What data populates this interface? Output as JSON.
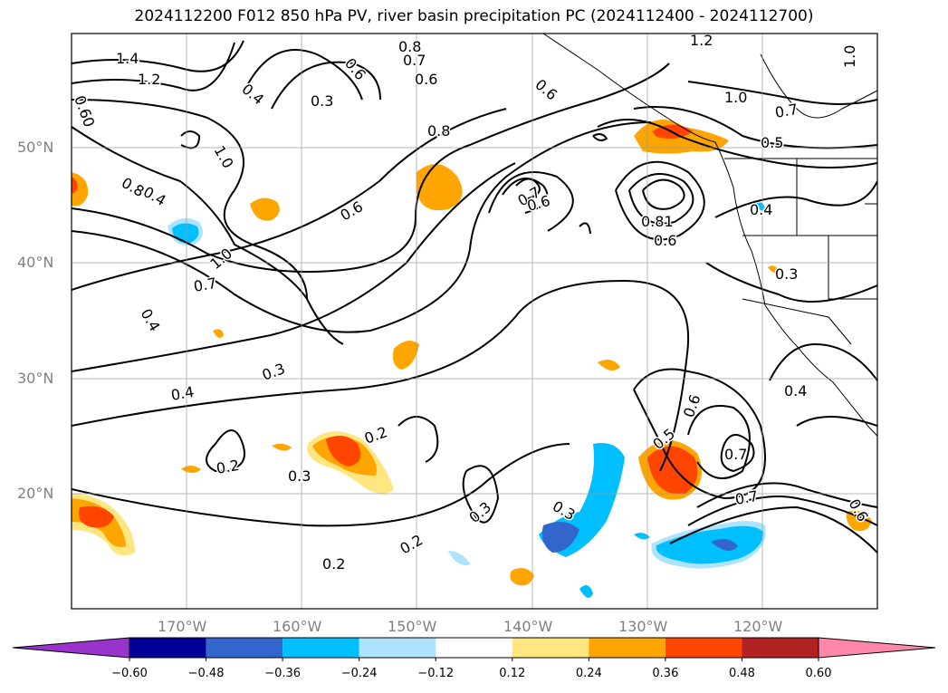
{
  "title": "2024112200 F012 850 hPa PV, river basin precipitation PC (2024112400 - 2024112700)",
  "lat_labels": [
    "50°N",
    "40°N",
    "30°N",
    "20°N"
  ],
  "lon_labels": [
    "170°W",
    "160°W",
    "150°W",
    "140°W",
    "130°W",
    "120°W"
  ],
  "colorbar": {
    "ticks": [
      "−0.60",
      "−0.48",
      "−0.36",
      "−0.24",
      "−0.12",
      "0.12",
      "0.24",
      "0.36",
      "0.48",
      "0.60"
    ],
    "colors": [
      "#9933cc",
      "#000099",
      "#3366cc",
      "#00bfff",
      "#aee3ff",
      "#ffffff",
      "#ffe680",
      "#ffa500",
      "#ff4500",
      "#b22222",
      "#ff88aa"
    ]
  },
  "contour_labels": [
    {
      "t": "1.4"
    },
    {
      "t": "1.2"
    },
    {
      "t": "0.60"
    },
    {
      "t": "0.8"
    },
    {
      "t": "1.0"
    },
    {
      "t": "0.4"
    },
    {
      "t": "0.3"
    },
    {
      "t": "0.6"
    },
    {
      "t": "0.7"
    },
    {
      "t": "0.6"
    },
    {
      "t": "0.8"
    },
    {
      "t": "0.8"
    },
    {
      "t": "0.6"
    },
    {
      "t": "1.2"
    },
    {
      "t": "1.0"
    },
    {
      "t": "0.7"
    },
    {
      "t": "0.5"
    },
    {
      "t": "0.4"
    },
    {
      "t": "0.3"
    },
    {
      "t": "0.6"
    },
    {
      "t": "0.7"
    },
    {
      "t": "0.6"
    },
    {
      "t": "0.81"
    },
    {
      "t": "0.6"
    },
    {
      "t": "1.0"
    },
    {
      "t": "0.7"
    },
    {
      "t": "0.4"
    },
    {
      "t": "0.3"
    },
    {
      "t": "0.4"
    },
    {
      "t": "0.2"
    },
    {
      "t": "0.2"
    },
    {
      "t": "0.3"
    },
    {
      "t": "0.2"
    },
    {
      "t": "0.3"
    },
    {
      "t": "0.2"
    },
    {
      "t": "0.3"
    },
    {
      "t": "0.5"
    },
    {
      "t": "0.6"
    },
    {
      "t": "0.7"
    },
    {
      "t": "0.7"
    },
    {
      "t": "0.4"
    },
    {
      "t": "0.6"
    },
    {
      "t": "1.0"
    },
    {
      "t": "0.4"
    }
  ]
}
